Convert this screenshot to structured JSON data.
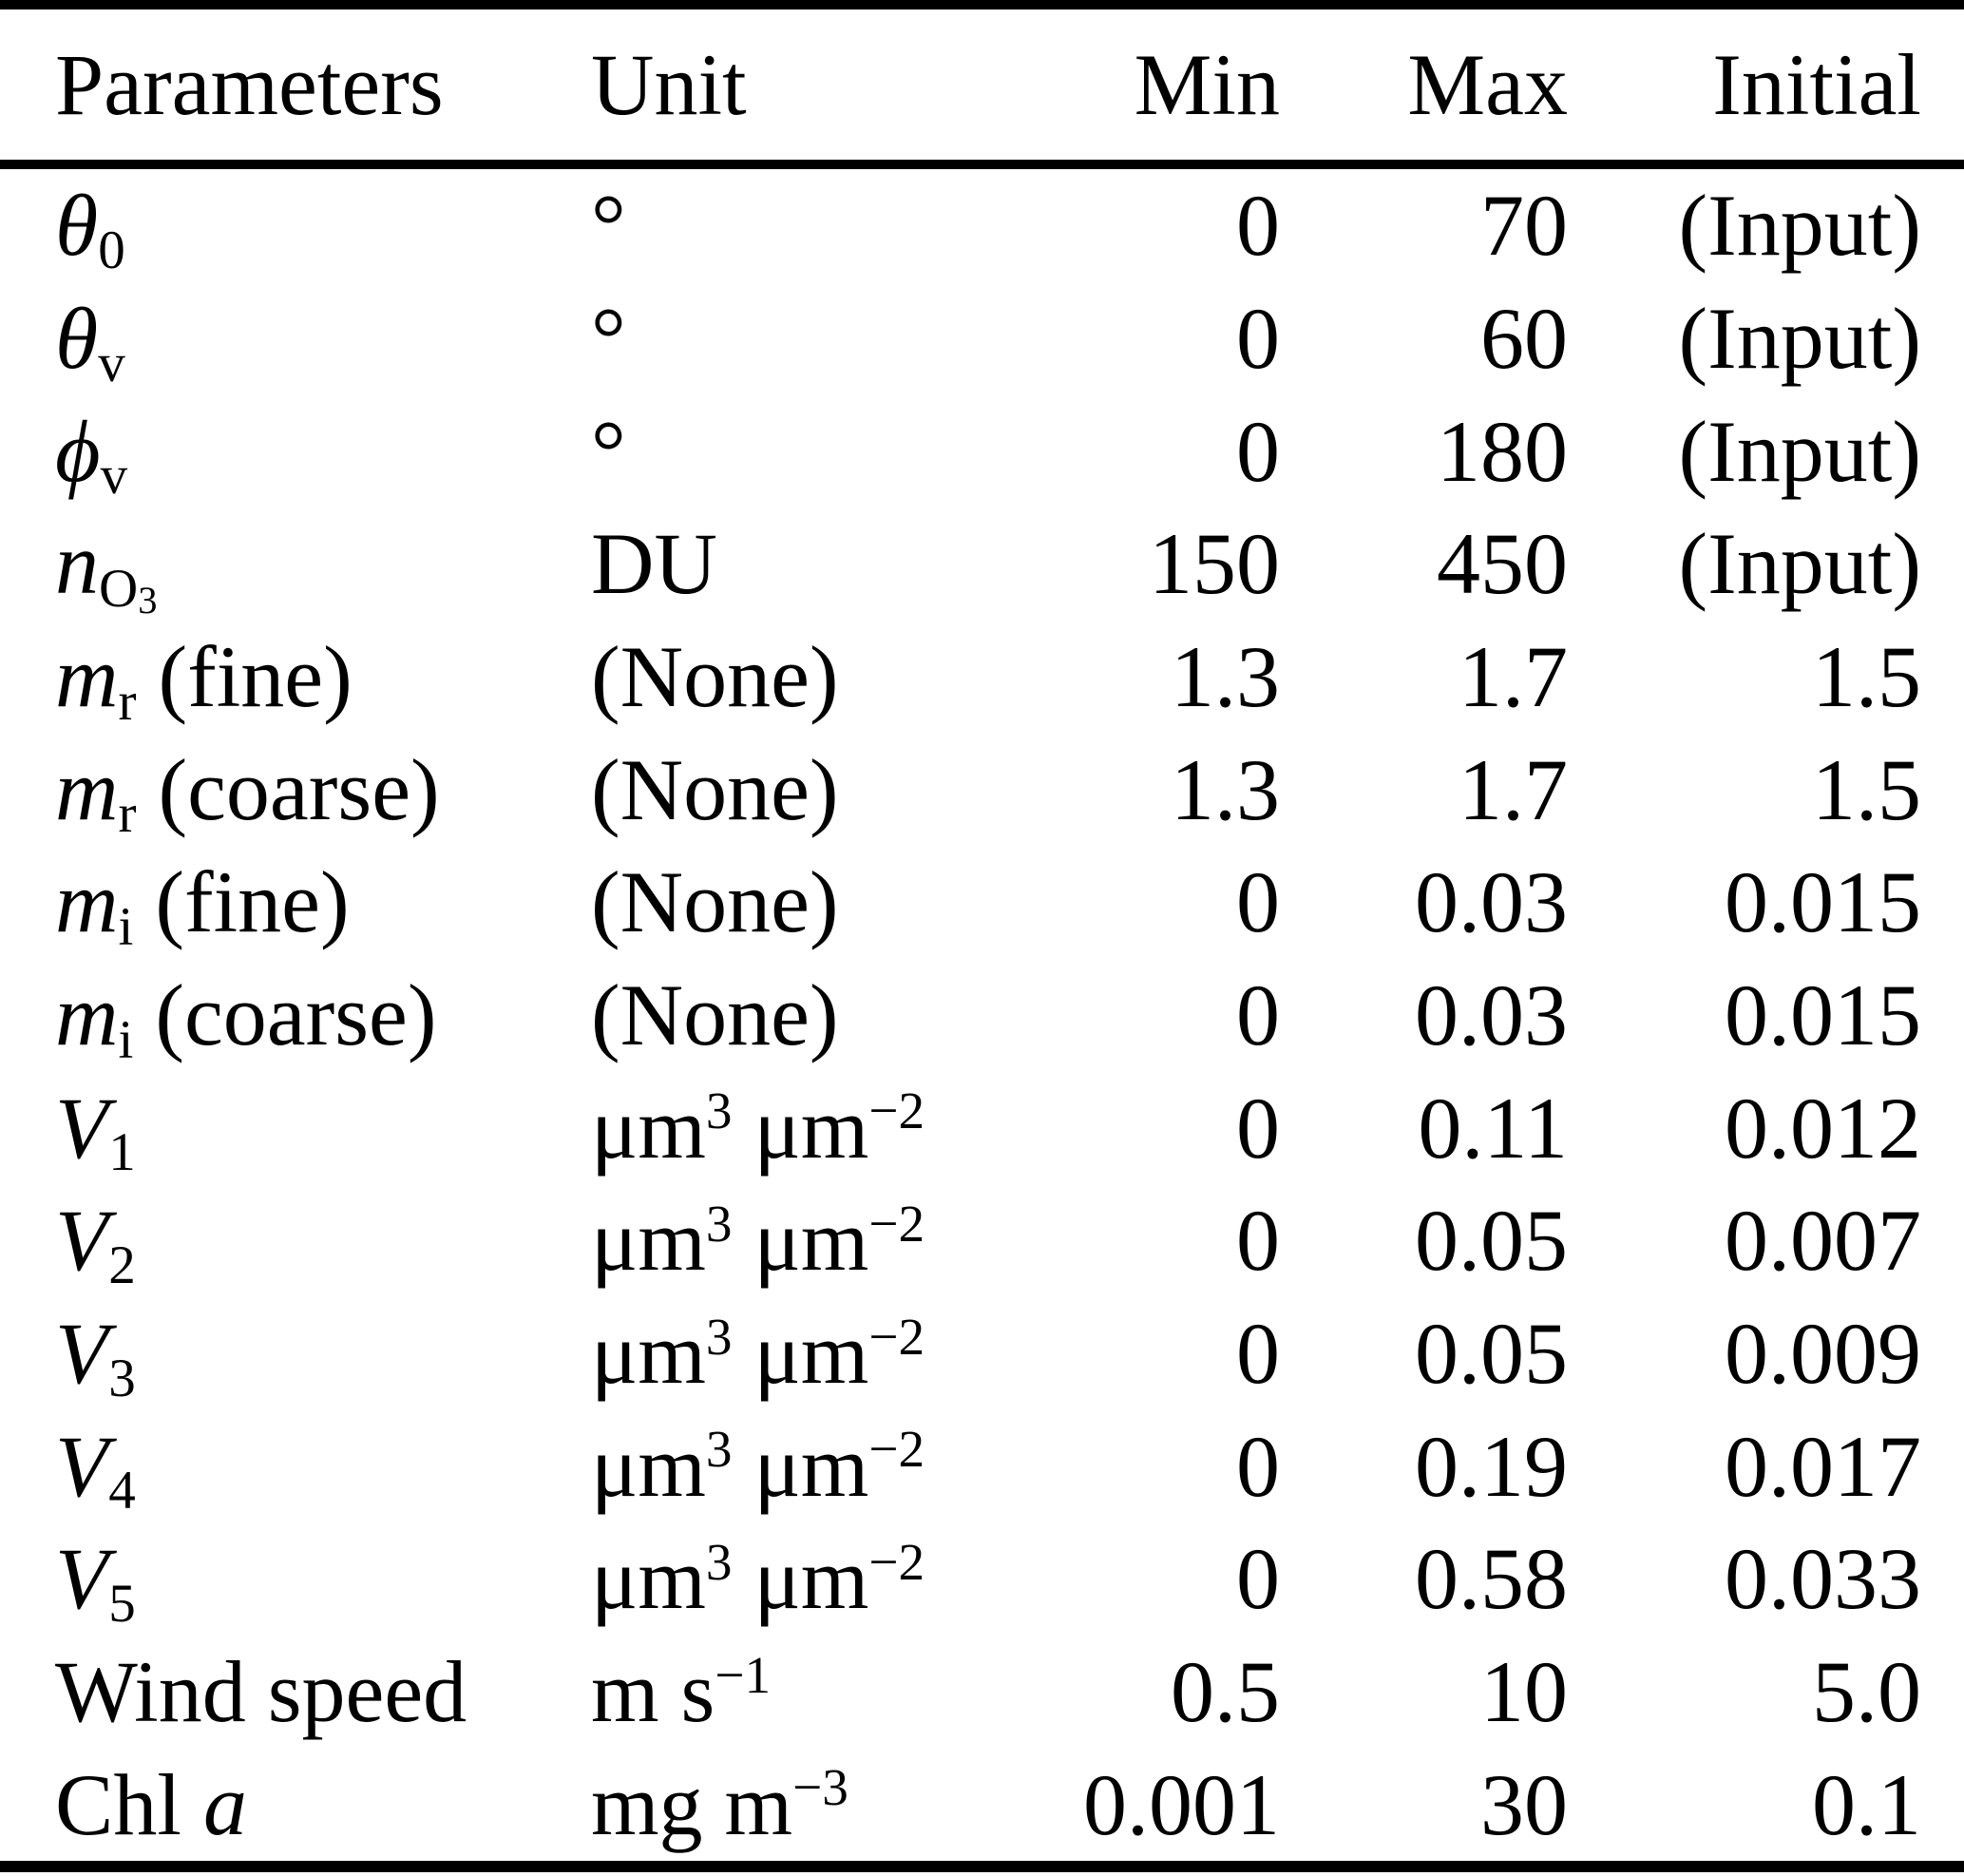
{
  "colors": {
    "text": "#000000",
    "background": "#ffffff",
    "rule": "#000000"
  },
  "table": {
    "headers": {
      "parameters": "Parameters",
      "unit": "Unit",
      "min": "Min",
      "max": "Max",
      "initial": "Initial"
    },
    "rows": [
      {
        "param": [
          [
            "θ",
            "i"
          ],
          [
            "0",
            "sub"
          ]
        ],
        "unit": [
          [
            "°",
            ""
          ]
        ],
        "min": "0",
        "max": "70",
        "initial": "(Input)"
      },
      {
        "param": [
          [
            "θ",
            "i"
          ],
          [
            "v",
            "sub"
          ]
        ],
        "unit": [
          [
            "°",
            ""
          ]
        ],
        "min": "0",
        "max": "60",
        "initial": "(Input)"
      },
      {
        "param": [
          [
            "ϕ",
            "i"
          ],
          [
            "v",
            "sub"
          ]
        ],
        "unit": [
          [
            "°",
            ""
          ]
        ],
        "min": "0",
        "max": "180",
        "initial": "(Input)"
      },
      {
        "param": [
          [
            "n",
            "i"
          ],
          [
            "O",
            "sub"
          ],
          [
            "3",
            "subsub"
          ]
        ],
        "unit": [
          [
            "DU",
            ""
          ]
        ],
        "min": "150",
        "max": "450",
        "initial": "(Input)"
      },
      {
        "param": [
          [
            "m",
            "i"
          ],
          [
            "r",
            "sub"
          ],
          [
            " (fine)",
            ""
          ]
        ],
        "unit": [
          [
            "(None)",
            ""
          ]
        ],
        "min": "1.3",
        "max": "1.7",
        "initial": "1.5"
      },
      {
        "param": [
          [
            "m",
            "i"
          ],
          [
            "r",
            "sub"
          ],
          [
            " (coarse)",
            ""
          ]
        ],
        "unit": [
          [
            "(None)",
            ""
          ]
        ],
        "min": "1.3",
        "max": "1.7",
        "initial": "1.5"
      },
      {
        "param": [
          [
            "m",
            "i"
          ],
          [
            "i",
            "sub"
          ],
          [
            " (fine)",
            ""
          ]
        ],
        "unit": [
          [
            "(None)",
            ""
          ]
        ],
        "min": "0",
        "max": "0.03",
        "initial": "0.015"
      },
      {
        "param": [
          [
            "m",
            "i"
          ],
          [
            "i",
            "sub"
          ],
          [
            " (coarse)",
            ""
          ]
        ],
        "unit": [
          [
            "(None)",
            ""
          ]
        ],
        "min": "0",
        "max": "0.03",
        "initial": "0.015"
      },
      {
        "param": [
          [
            "V",
            "i"
          ],
          [
            "1",
            "sub"
          ]
        ],
        "unit": [
          [
            "μm",
            ""
          ],
          [
            "3",
            "sup"
          ],
          [
            " μm",
            ""
          ],
          [
            "−2",
            "sup"
          ]
        ],
        "min": "0",
        "max": "0.11",
        "initial": "0.012"
      },
      {
        "param": [
          [
            "V",
            "i"
          ],
          [
            "2",
            "sub"
          ]
        ],
        "unit": [
          [
            "μm",
            ""
          ],
          [
            "3",
            "sup"
          ],
          [
            " μm",
            ""
          ],
          [
            "−2",
            "sup"
          ]
        ],
        "min": "0",
        "max": "0.05",
        "initial": "0.007"
      },
      {
        "param": [
          [
            "V",
            "i"
          ],
          [
            "3",
            "sub"
          ]
        ],
        "unit": [
          [
            "μm",
            ""
          ],
          [
            "3",
            "sup"
          ],
          [
            " μm",
            ""
          ],
          [
            "−2",
            "sup"
          ]
        ],
        "min": "0",
        "max": "0.05",
        "initial": "0.009"
      },
      {
        "param": [
          [
            "V",
            "i"
          ],
          [
            "4",
            "sub"
          ]
        ],
        "unit": [
          [
            "μm",
            ""
          ],
          [
            "3",
            "sup"
          ],
          [
            " μm",
            ""
          ],
          [
            "−2",
            "sup"
          ]
        ],
        "min": "0",
        "max": "0.19",
        "initial": "0.017"
      },
      {
        "param": [
          [
            "V",
            "i"
          ],
          [
            "5",
            "sub"
          ]
        ],
        "unit": [
          [
            "μm",
            ""
          ],
          [
            "3",
            "sup"
          ],
          [
            " μm",
            ""
          ],
          [
            "−2",
            "sup"
          ]
        ],
        "min": "0",
        "max": "0.58",
        "initial": "0.033"
      },
      {
        "param": [
          [
            "Wind speed",
            ""
          ]
        ],
        "unit": [
          [
            "m s",
            ""
          ],
          [
            "−1",
            "sup"
          ]
        ],
        "min": "0.5",
        "max": "10",
        "initial": "5.0"
      },
      {
        "param": [
          [
            "Chl ",
            ""
          ],
          [
            "a",
            "i"
          ]
        ],
        "unit": [
          [
            "mg m",
            ""
          ],
          [
            "−3",
            "sup"
          ]
        ],
        "min": "0.001",
        "max": "30",
        "initial": "0.1"
      }
    ]
  }
}
